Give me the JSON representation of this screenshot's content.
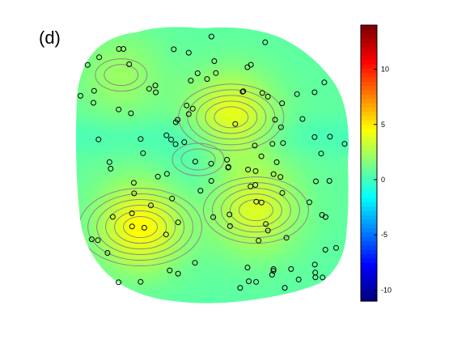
{
  "panel_label": "(d)",
  "chart_data": {
    "type": "heatmap",
    "title": "",
    "xlabel": "",
    "ylabel": "",
    "colormap": "jet",
    "clim": [
      -11,
      14
    ],
    "colorbar": {
      "ticks": [
        -10,
        -5,
        0,
        5,
        10
      ],
      "tick_labels": [
        "-10",
        "-5",
        "0",
        "5",
        "10"
      ],
      "position": "right"
    },
    "contour_color": "#8a8a8a",
    "marker_style": "open-circle",
    "sensor_count": 123,
    "hotspots": [
      {
        "label": "lower-left",
        "value": 4.0,
        "cx": 0.24,
        "cy": 0.72
      },
      {
        "label": "lower-right",
        "value": 3.0,
        "cx": 0.66,
        "cy": 0.66
      },
      {
        "label": "upper-center",
        "value": 3.5,
        "cx": 0.57,
        "cy": 0.33
      },
      {
        "label": "upper-left",
        "value": 1.5,
        "cx": 0.17,
        "cy": 0.18
      },
      {
        "label": "central-trough",
        "value": -0.8,
        "cx": 0.45,
        "cy": 0.48
      }
    ]
  },
  "colors": {
    "background": "#ffffff",
    "marker_stroke": "#000000"
  }
}
